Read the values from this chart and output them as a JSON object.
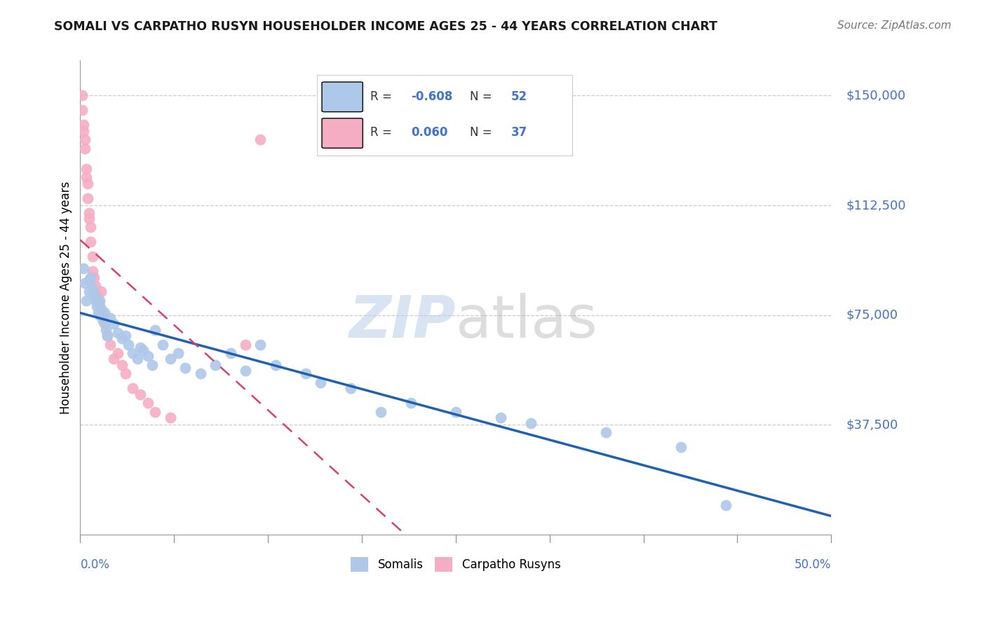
{
  "title": "SOMALI VS CARPATHO RUSYN HOUSEHOLDER INCOME AGES 25 - 44 YEARS CORRELATION CHART",
  "source": "Source: ZipAtlas.com",
  "ylabel": "Householder Income Ages 25 - 44 years",
  "legend_somali_R": "-0.608",
  "legend_somali_N": "52",
  "legend_carpatho_R": "0.060",
  "legend_carpatho_N": "37",
  "somali_color": "#adc8e8",
  "carpatho_color": "#f5adc4",
  "somali_line_color": "#2060b0",
  "carpatho_line_color": "#d84070",
  "xlim": [
    0.0,
    0.5
  ],
  "ylim": [
    0,
    162000
  ],
  "ytick_values": [
    37500,
    75000,
    112500,
    150000
  ],
  "ytick_labels": [
    "$37,500",
    "$75,000",
    "$112,500",
    "$150,000"
  ],
  "somali_x": [
    0.002,
    0.003,
    0.004,
    0.006,
    0.006,
    0.007,
    0.008,
    0.009,
    0.01,
    0.011,
    0.012,
    0.013,
    0.013,
    0.014,
    0.015,
    0.016,
    0.017,
    0.018,
    0.02,
    0.022,
    0.025,
    0.028,
    0.03,
    0.032,
    0.035,
    0.038,
    0.04,
    0.042,
    0.045,
    0.048,
    0.05,
    0.055,
    0.06,
    0.065,
    0.07,
    0.08,
    0.09,
    0.1,
    0.11,
    0.12,
    0.13,
    0.15,
    0.16,
    0.18,
    0.2,
    0.22,
    0.25,
    0.28,
    0.3,
    0.35,
    0.4,
    0.43
  ],
  "somali_y": [
    91000,
    86000,
    80000,
    87000,
    83000,
    88000,
    84000,
    82000,
    80000,
    78000,
    76000,
    80000,
    75000,
    77000,
    73000,
    76000,
    70000,
    68000,
    74000,
    72000,
    69000,
    67000,
    68000,
    65000,
    62000,
    60000,
    64000,
    63000,
    61000,
    58000,
    70000,
    65000,
    60000,
    62000,
    57000,
    55000,
    58000,
    62000,
    56000,
    65000,
    58000,
    55000,
    52000,
    50000,
    42000,
    45000,
    42000,
    40000,
    38000,
    35000,
    30000,
    10000
  ],
  "carpatho_x": [
    0.001,
    0.001,
    0.002,
    0.002,
    0.003,
    0.003,
    0.004,
    0.004,
    0.005,
    0.005,
    0.006,
    0.006,
    0.007,
    0.007,
    0.008,
    0.008,
    0.009,
    0.01,
    0.011,
    0.012,
    0.013,
    0.014,
    0.015,
    0.016,
    0.018,
    0.02,
    0.022,
    0.025,
    0.028,
    0.03,
    0.035,
    0.04,
    0.045,
    0.05,
    0.06,
    0.11,
    0.12
  ],
  "carpatho_y": [
    150000,
    145000,
    140000,
    138000,
    135000,
    132000,
    125000,
    122000,
    120000,
    115000,
    110000,
    108000,
    105000,
    100000,
    95000,
    90000,
    88000,
    85000,
    82000,
    80000,
    78000,
    83000,
    75000,
    72000,
    68000,
    65000,
    60000,
    62000,
    58000,
    55000,
    50000,
    48000,
    45000,
    42000,
    40000,
    65000,
    135000
  ]
}
